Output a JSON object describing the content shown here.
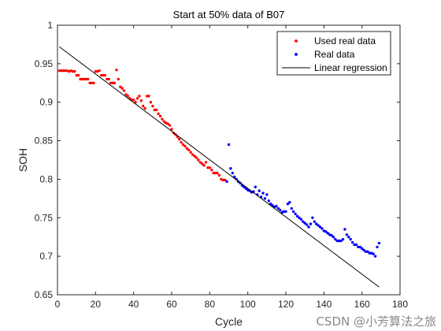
{
  "chart_data": {
    "type": "scatter",
    "title": "Start at 50% data of B07",
    "xlabel": "Cycle",
    "ylabel": "SOH",
    "xlim": [
      0,
      180
    ],
    "ylim": [
      0.65,
      1
    ],
    "xticks": [
      0,
      20,
      40,
      60,
      80,
      100,
      120,
      140,
      160,
      180
    ],
    "yticks": [
      0.65,
      0.7,
      0.75,
      0.8,
      0.85,
      0.9,
      0.95,
      1
    ],
    "grid": false,
    "legend_position": "top-right",
    "series": [
      {
        "name": "Used real data",
        "kind": "points",
        "color": "#ff0000",
        "points": [
          [
            1,
            0.941
          ],
          [
            2,
            0.941
          ],
          [
            3,
            0.941
          ],
          [
            4,
            0.941
          ],
          [
            5,
            0.941
          ],
          [
            6,
            0.94
          ],
          [
            7,
            0.941
          ],
          [
            8,
            0.94
          ],
          [
            9,
            0.94
          ],
          [
            10,
            0.935
          ],
          [
            11,
            0.935
          ],
          [
            12,
            0.93
          ],
          [
            13,
            0.93
          ],
          [
            14,
            0.93
          ],
          [
            15,
            0.93
          ],
          [
            16,
            0.93
          ],
          [
            17,
            0.925
          ],
          [
            18,
            0.925
          ],
          [
            19,
            0.925
          ],
          [
            20,
            0.94
          ],
          [
            21,
            0.94
          ],
          [
            22,
            0.941
          ],
          [
            23,
            0.935
          ],
          [
            24,
            0.935
          ],
          [
            25,
            0.935
          ],
          [
            26,
            0.93
          ],
          [
            27,
            0.93
          ],
          [
            28,
            0.925
          ],
          [
            29,
            0.925
          ],
          [
            30,
            0.925
          ],
          [
            31,
            0.942
          ],
          [
            32,
            0.93
          ],
          [
            33,
            0.92
          ],
          [
            34,
            0.918
          ],
          [
            35,
            0.915
          ],
          [
            36,
            0.91
          ],
          [
            37,
            0.908
          ],
          [
            38,
            0.905
          ],
          [
            39,
            0.903
          ],
          [
            40,
            0.903
          ],
          [
            41,
            0.9
          ],
          [
            42,
            0.905
          ],
          [
            43,
            0.908
          ],
          [
            44,
            0.902
          ],
          [
            45,
            0.895
          ],
          [
            46,
            0.892
          ],
          [
            47,
            0.908
          ],
          [
            48,
            0.908
          ],
          [
            49,
            0.9
          ],
          [
            50,
            0.895
          ],
          [
            51,
            0.89
          ],
          [
            52,
            0.89
          ],
          [
            53,
            0.885
          ],
          [
            54,
            0.882
          ],
          [
            55,
            0.878
          ],
          [
            56,
            0.875
          ],
          [
            57,
            0.873
          ],
          [
            58,
            0.872
          ],
          [
            59,
            0.87
          ],
          [
            60,
            0.865
          ],
          [
            61,
            0.86
          ],
          [
            62,
            0.858
          ],
          [
            63,
            0.855
          ],
          [
            64,
            0.852
          ],
          [
            65,
            0.848
          ],
          [
            66,
            0.845
          ],
          [
            67,
            0.843
          ],
          [
            68,
            0.84
          ],
          [
            69,
            0.838
          ],
          [
            70,
            0.835
          ],
          [
            71,
            0.832
          ],
          [
            72,
            0.83
          ],
          [
            73,
            0.828
          ],
          [
            74,
            0.825
          ],
          [
            75,
            0.822
          ],
          [
            76,
            0.82
          ],
          [
            77,
            0.818
          ],
          [
            78,
            0.822
          ],
          [
            79,
            0.815
          ],
          [
            80,
            0.815
          ],
          [
            81,
            0.812
          ],
          [
            82,
            0.808
          ],
          [
            83,
            0.808
          ],
          [
            84,
            0.808
          ],
          [
            85,
            0.805
          ],
          [
            86,
            0.8
          ],
          [
            87,
            0.799
          ],
          [
            88,
            0.799
          ]
        ]
      },
      {
        "name": "Real data",
        "kind": "points",
        "color": "#0000ff",
        "points": [
          [
            89,
            0.797
          ],
          [
            90,
            0.845
          ],
          [
            91,
            0.814
          ],
          [
            92,
            0.808
          ],
          [
            93,
            0.803
          ],
          [
            94,
            0.8
          ],
          [
            95,
            0.797
          ],
          [
            96,
            0.795
          ],
          [
            97,
            0.792
          ],
          [
            98,
            0.79
          ],
          [
            99,
            0.788
          ],
          [
            100,
            0.786
          ],
          [
            101,
            0.785
          ],
          [
            102,
            0.783
          ],
          [
            103,
            0.784
          ],
          [
            104,
            0.79
          ],
          [
            105,
            0.78
          ],
          [
            106,
            0.785
          ],
          [
            107,
            0.777
          ],
          [
            108,
            0.782
          ],
          [
            109,
            0.775
          ],
          [
            110,
            0.78
          ],
          [
            111,
            0.772
          ],
          [
            112,
            0.768
          ],
          [
            113,
            0.766
          ],
          [
            114,
            0.764
          ],
          [
            115,
            0.765
          ],
          [
            116,
            0.762
          ],
          [
            117,
            0.76
          ],
          [
            118,
            0.757
          ],
          [
            119,
            0.758
          ],
          [
            120,
            0.758
          ],
          [
            121,
            0.768
          ],
          [
            122,
            0.77
          ],
          [
            123,
            0.762
          ],
          [
            124,
            0.758
          ],
          [
            125,
            0.755
          ],
          [
            126,
            0.752
          ],
          [
            127,
            0.75
          ],
          [
            128,
            0.748
          ],
          [
            129,
            0.745
          ],
          [
            130,
            0.743
          ],
          [
            131,
            0.741
          ],
          [
            132,
            0.738
          ],
          [
            133,
            0.742
          ],
          [
            134,
            0.75
          ],
          [
            135,
            0.745
          ],
          [
            136,
            0.742
          ],
          [
            137,
            0.74
          ],
          [
            138,
            0.738
          ],
          [
            139,
            0.736
          ],
          [
            140,
            0.733
          ],
          [
            141,
            0.732
          ],
          [
            142,
            0.73
          ],
          [
            143,
            0.728
          ],
          [
            144,
            0.727
          ],
          [
            145,
            0.725
          ],
          [
            146,
            0.722
          ],
          [
            147,
            0.72
          ],
          [
            148,
            0.72
          ],
          [
            149,
            0.72
          ],
          [
            150,
            0.722
          ],
          [
            151,
            0.735
          ],
          [
            152,
            0.728
          ],
          [
            153,
            0.725
          ],
          [
            154,
            0.722
          ],
          [
            155,
            0.718
          ],
          [
            156,
            0.715
          ],
          [
            157,
            0.715
          ],
          [
            158,
            0.712
          ],
          [
            159,
            0.712
          ],
          [
            160,
            0.71
          ],
          [
            161,
            0.708
          ],
          [
            162,
            0.706
          ],
          [
            163,
            0.706
          ],
          [
            164,
            0.704
          ],
          [
            165,
            0.704
          ],
          [
            166,
            0.703
          ],
          [
            167,
            0.7
          ],
          [
            168,
            0.712
          ],
          [
            169,
            0.717
          ]
        ]
      },
      {
        "name": "Linear regression",
        "kind": "line",
        "color": "#000000",
        "points": [
          [
            1,
            0.972
          ],
          [
            169,
            0.66
          ]
        ]
      }
    ]
  },
  "watermark": "CSDN @小芳算法之旅"
}
